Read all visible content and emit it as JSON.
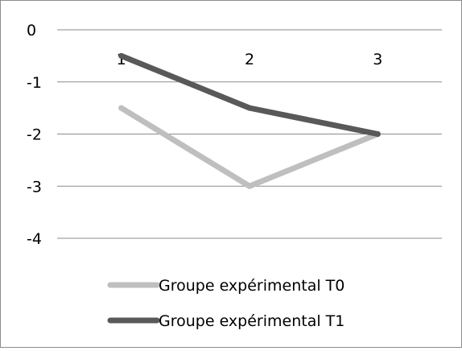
{
  "chart_data": {
    "type": "line",
    "title": "",
    "xlabel": "",
    "ylabel": "",
    "categories": [
      "1",
      "2",
      "3"
    ],
    "ylim": [
      -4,
      0
    ],
    "y_ticks": [
      "0",
      "-1",
      "-2",
      "-3",
      "-4"
    ],
    "grid": "horizontal",
    "legend_position": "bottom",
    "series": [
      {
        "name": "Groupe expérimental T0",
        "values": [
          -1.5,
          -3,
          -2
        ],
        "color": "#bfbfbf"
      },
      {
        "name": "Groupe expérimental T1",
        "values": [
          -0.5,
          -1.5,
          -2
        ],
        "color": "#595959"
      }
    ]
  }
}
